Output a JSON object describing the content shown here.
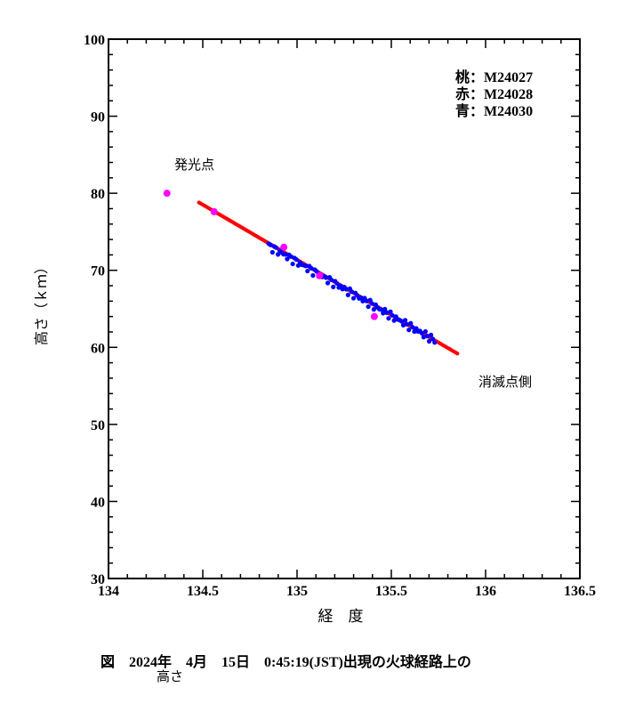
{
  "chart_data": {
    "type": "scatter",
    "title": "",
    "xlabel": "経　度",
    "ylabel": "高さ（ｋｍ）",
    "xlim": [
      134,
      136.5
    ],
    "ylim": [
      30,
      100
    ],
    "xticks": [
      134,
      134.5,
      135,
      135.5,
      136,
      136.5
    ],
    "xtick_labels": [
      "134",
      "134.5",
      "135",
      "135.5",
      "136",
      "136.5"
    ],
    "yticks": [
      30,
      40,
      50,
      60,
      70,
      80,
      90,
      100
    ],
    "ytick_labels": [
      "30",
      "40",
      "50",
      "60",
      "70",
      "80",
      "90",
      "100"
    ],
    "legend": [
      {
        "label": "桃：M24027",
        "color": "#ff00ff"
      },
      {
        "label": "赤：M24028",
        "color": "#ff0000"
      },
      {
        "label": "青：M24030",
        "color": "#0000ff"
      }
    ],
    "annotations": {
      "start": "発光点",
      "end": "消滅点側"
    },
    "series": [
      {
        "name": "M24027",
        "color": "#ff00ff",
        "points": [
          [
            134.31,
            80.0
          ],
          [
            134.56,
            77.6
          ],
          [
            134.93,
            73.0
          ],
          [
            135.12,
            69.3
          ],
          [
            135.41,
            64.0
          ]
        ]
      },
      {
        "name": "M24028",
        "color": "#ff0000",
        "line_from": [
          134.48,
          78.8
        ],
        "line_to": [
          135.85,
          59.2
        ]
      },
      {
        "name": "M24030",
        "color": "#0000ff",
        "line_from": [
          134.85,
          73.2
        ],
        "line_to": [
          135.73,
          60.9
        ]
      }
    ]
  },
  "caption": {
    "line1": "図　2024年　4月　15日　0:45:19(JST)出現の火球経路上の",
    "line2": "高さ"
  }
}
